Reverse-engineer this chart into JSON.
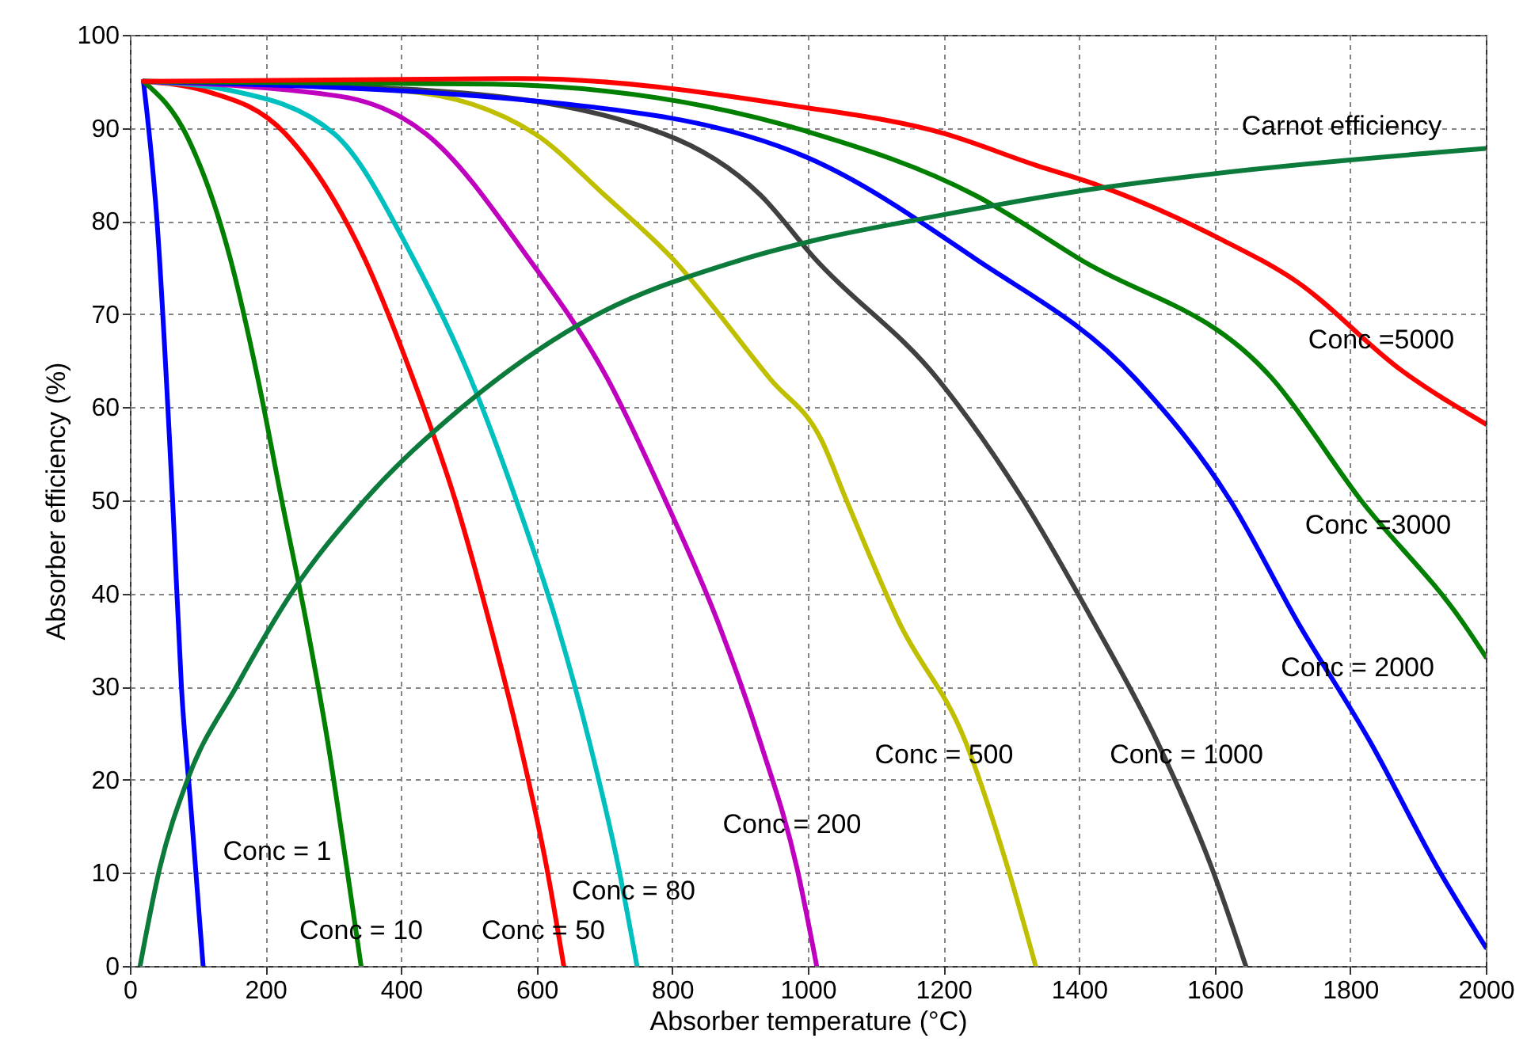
{
  "chart_data": {
    "type": "line",
    "xlabel": "Absorber temperature (°C)",
    "ylabel": "Absorber efficiency (%)",
    "xlim": [
      0,
      2000
    ],
    "xticks": [
      0,
      200,
      400,
      600,
      800,
      1000,
      1200,
      1400,
      1600,
      1800,
      2000
    ],
    "ylim": [
      0,
      100
    ],
    "yticks": [
      0,
      10,
      20,
      30,
      40,
      50,
      60,
      70,
      80,
      90,
      100
    ],
    "grid": true,
    "series": [
      {
        "color": "#0000ff",
        "x": [
          20,
          40,
          63,
          76,
          90,
          108
        ],
        "values": [
          95,
          80,
          50,
          30,
          17,
          0
        ]
      },
      {
        "color": "#007f00",
        "x": [
          20,
          85,
          148,
          189,
          224,
          260,
          292,
          320,
          341
        ],
        "values": [
          95,
          89,
          76,
          63,
          50,
          37,
          24,
          10.5,
          0
        ]
      },
      {
        "color": "#ff0000",
        "x": [
          20,
          110,
          229,
          346,
          418,
          480,
          530,
          575,
          615,
          640
        ],
        "values": [
          95,
          94,
          89.4,
          76,
          63,
          50,
          37,
          24,
          10.5,
          0
        ]
      },
      {
        "color": "#00bfbf",
        "x": [
          20,
          150,
          301,
          418,
          503,
          570,
          629,
          678,
          721,
          748
        ],
        "values": [
          95,
          94,
          89.4,
          76,
          63,
          50,
          37,
          24,
          10.5,
          0
        ]
      },
      {
        "color": "#bf00bf",
        "x": [
          20,
          310,
          436,
          588,
          705,
          790,
          867,
          930,
          984,
          1013
        ],
        "values": [
          95,
          93.4,
          89.4,
          76,
          63,
          50,
          37,
          24,
          10.5,
          0
        ]
      },
      {
        "color": "#bfbf00",
        "x": [
          20,
          400,
          597,
          700,
          800,
          945,
          1020,
          1057,
          1134,
          1233,
          1295,
          1336
        ],
        "values": [
          95,
          94,
          89.4,
          82.8,
          76,
          63,
          56.5,
          50,
          37,
          24,
          10.5,
          0
        ]
      },
      {
        "color": "#404040",
        "x": [
          20,
          445,
          786,
          930,
          1010,
          1192,
          1318,
          1421,
          1516,
          1596,
          1646
        ],
        "values": [
          95,
          94,
          89.4,
          82.8,
          76,
          63,
          50,
          37,
          24,
          10.5,
          0
        ]
      },
      {
        "color": "#0000ff",
        "x": [
          20,
          624,
          1000,
          1246,
          1484,
          1623,
          1722,
          1830,
          1929,
          2000
        ],
        "values": [
          95,
          92.7,
          86.8,
          76,
          63,
          50,
          37,
          24,
          10.5,
          2
        ]
      },
      {
        "color": "#007f00",
        "x": [
          20,
          535,
          1000,
          1246,
          1399,
          1686,
          1816,
          1965,
          2000
        ],
        "values": [
          95,
          94.7,
          89.6,
          82.8,
          76,
          63,
          50,
          37,
          33.2
        ]
      },
      {
        "color": "#ff0000",
        "x": [
          20,
          579,
          977,
          1201,
          1336,
          1426,
          1605,
          1721,
          1875,
          2000
        ],
        "values": [
          95,
          95.3,
          92.4,
          89.4,
          86,
          83.9,
          78.2,
          73.5,
          64,
          58.2
        ]
      },
      {
        "color": "#0b7a3a",
        "x": [
          15,
          44,
          85,
          157,
          238,
          346,
          490,
          665,
          900,
          1020,
          1165,
          1426,
          1650,
          2000
        ],
        "values": [
          0,
          10.5,
          20,
          30,
          40,
          50,
          60,
          69,
          75.8,
          78.1,
          80.2,
          83.5,
          85.5,
          87.8
        ]
      }
    ],
    "annotations": [
      "Conc = 1",
      "Conc = 10",
      "Conc = 50",
      "Conc = 80",
      "Conc = 200",
      "Conc = 500",
      "Conc = 1000",
      "Conc = 2000",
      "Conc =3000",
      "Conc =5000",
      "Carnot efficiency"
    ]
  }
}
